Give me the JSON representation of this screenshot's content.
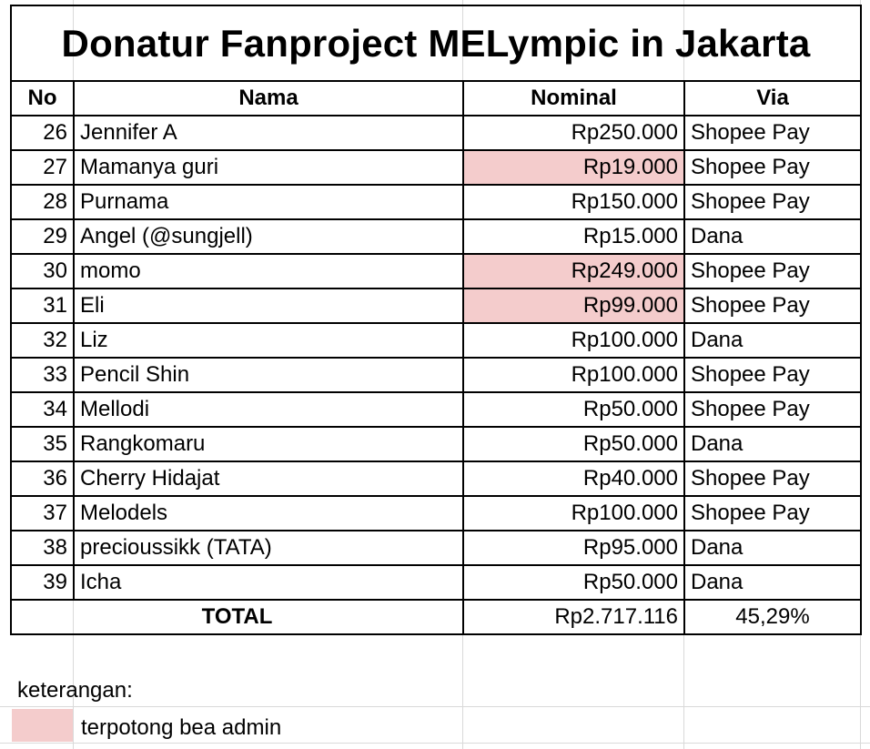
{
  "title": "Donatur Fanproject MELympic in Jakarta",
  "headers": {
    "no": "No",
    "name": "Nama",
    "nominal": "Nominal",
    "via": "Via"
  },
  "rows": [
    {
      "no": "26",
      "name": "Jennifer A",
      "nominal": "Rp250.000",
      "via": "Shopee Pay",
      "admin_fee": false
    },
    {
      "no": "27",
      "name": "Mamanya guri",
      "nominal": "Rp19.000",
      "via": "Shopee Pay",
      "admin_fee": true
    },
    {
      "no": "28",
      "name": "Purnama",
      "nominal": "Rp150.000",
      "via": "Shopee Pay",
      "admin_fee": false
    },
    {
      "no": "29",
      "name": "Angel (@sungjell)",
      "nominal": "Rp15.000",
      "via": "Dana",
      "admin_fee": false
    },
    {
      "no": "30",
      "name": "momo",
      "nominal": "Rp249.000",
      "via": "Shopee Pay",
      "admin_fee": true
    },
    {
      "no": "31",
      "name": "Eli",
      "nominal": "Rp99.000",
      "via": "Shopee Pay",
      "admin_fee": true
    },
    {
      "no": "32",
      "name": "Liz",
      "nominal": "Rp100.000",
      "via": "Dana",
      "admin_fee": false
    },
    {
      "no": "33",
      "name": "Pencil Shin",
      "nominal": "Rp100.000",
      "via": "Shopee Pay",
      "admin_fee": false
    },
    {
      "no": "34",
      "name": "Mellodi",
      "nominal": "Rp50.000",
      "via": "Shopee Pay",
      "admin_fee": false
    },
    {
      "no": "35",
      "name": "Rangkomaru",
      "nominal": "Rp50.000",
      "via": "Dana",
      "admin_fee": false
    },
    {
      "no": "36",
      "name": "Cherry Hidajat",
      "nominal": "Rp40.000",
      "via": "Shopee Pay",
      "admin_fee": false
    },
    {
      "no": "37",
      "name": "Melodels",
      "nominal": "Rp100.000",
      "via": "Shopee Pay",
      "admin_fee": false
    },
    {
      "no": "38",
      "name": "precioussikk (TATA)",
      "nominal": "Rp95.000",
      "via": "Dana",
      "admin_fee": false
    },
    {
      "no": "39",
      "name": "Icha",
      "nominal": "Rp50.000",
      "via": "Dana",
      "admin_fee": false
    }
  ],
  "total": {
    "label": "TOTAL",
    "nominal": "Rp2.717.116",
    "percent": "45,29%"
  },
  "legend": {
    "heading": "keterangan:",
    "admin_fee_label": "terpotong bea admin",
    "admin_fee_color": "#f4cccc"
  }
}
